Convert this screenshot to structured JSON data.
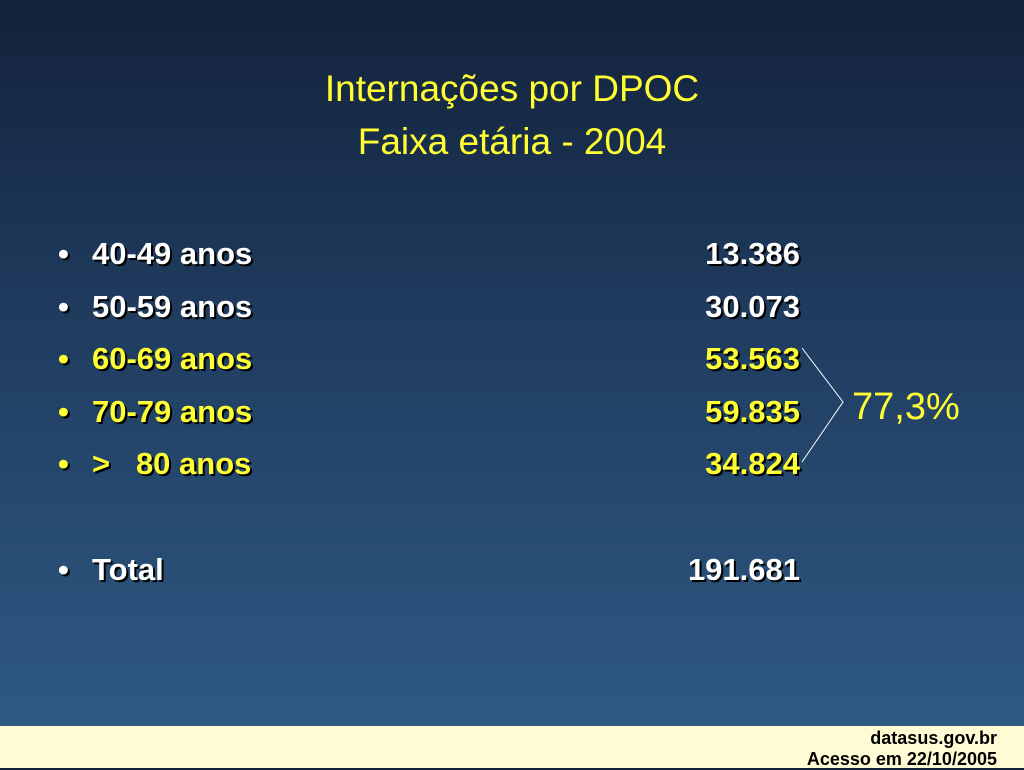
{
  "title": {
    "line1": "Internações por DPOC",
    "line2": "Faixa etária - 2004"
  },
  "items": [
    {
      "label": "40-49 anos",
      "value": "13.386"
    },
    {
      "label": "50-59 anos",
      "value": "30.073"
    },
    {
      "label": "60-69 anos",
      "value": "53.563"
    },
    {
      "label": "70-79 anos",
      "value": "59.835"
    },
    {
      "label": ">   80 anos",
      "value": "34.824"
    },
    {
      "label": "Total",
      "value": "191.681"
    }
  ],
  "annotation": "77,3%",
  "footer": {
    "line1": "datasus.gov.br",
    "line2": "Acesso em 22/10/2005"
  }
}
